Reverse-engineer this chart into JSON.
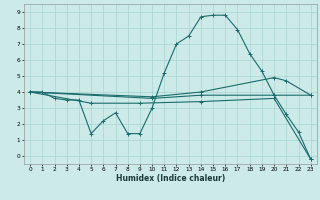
{
  "xlabel": "Humidex (Indice chaleur)",
  "bg_color": "#cceae8",
  "grid_color": "#aad4d2",
  "line_color": "#1a6b6b",
  "xlim": [
    -0.5,
    23.5
  ],
  "ylim": [
    -0.5,
    9.5
  ],
  "xticks": [
    0,
    1,
    2,
    3,
    4,
    5,
    6,
    7,
    8,
    9,
    10,
    11,
    12,
    13,
    14,
    15,
    16,
    17,
    18,
    19,
    20,
    21,
    22,
    23
  ],
  "yticks": [
    0,
    1,
    2,
    3,
    4,
    5,
    6,
    7,
    8,
    9
  ],
  "series1": [
    [
      0,
      4.0
    ],
    [
      1,
      4.0
    ],
    [
      2,
      3.6
    ],
    [
      3,
      3.5
    ],
    [
      4,
      3.5
    ],
    [
      5,
      1.4
    ],
    [
      6,
      2.2
    ],
    [
      7,
      2.7
    ],
    [
      8,
      1.4
    ],
    [
      9,
      1.4
    ],
    [
      10,
      3.0
    ],
    [
      11,
      5.2
    ],
    [
      12,
      7.0
    ],
    [
      13,
      7.5
    ],
    [
      14,
      8.7
    ],
    [
      15,
      8.8
    ],
    [
      16,
      8.8
    ],
    [
      17,
      7.9
    ],
    [
      18,
      6.4
    ],
    [
      19,
      5.3
    ],
    [
      20,
      3.8
    ],
    [
      21,
      2.6
    ],
    [
      22,
      1.5
    ],
    [
      23,
      -0.2
    ]
  ],
  "series2": [
    [
      0,
      4.0
    ],
    [
      10,
      3.7
    ],
    [
      14,
      4.0
    ],
    [
      20,
      4.9
    ],
    [
      21,
      4.7
    ],
    [
      23,
      3.8
    ]
  ],
  "series3": [
    [
      0,
      4.0
    ],
    [
      10,
      3.6
    ],
    [
      14,
      3.8
    ],
    [
      20,
      3.8
    ],
    [
      23,
      3.8
    ]
  ],
  "series4": [
    [
      0,
      4.0
    ],
    [
      5,
      3.3
    ],
    [
      9,
      3.3
    ],
    [
      14,
      3.4
    ],
    [
      20,
      3.6
    ],
    [
      23,
      -0.2
    ]
  ]
}
